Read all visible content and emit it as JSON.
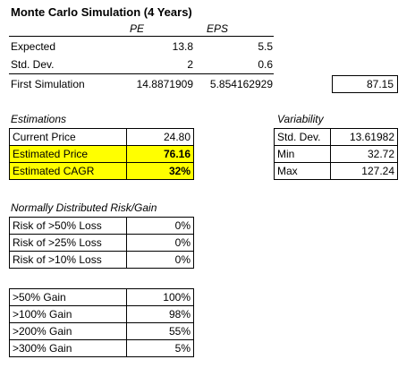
{
  "title": "Monte Carlo Simulation (4 Years)",
  "headers": {
    "pe": "PE",
    "eps": "EPS"
  },
  "rows": [
    {
      "label": "Expected",
      "pe": "13.8",
      "eps": "5.5"
    },
    {
      "label": "Std. Dev.",
      "pe": "2",
      "eps": "0.6"
    },
    {
      "label": "First Simulation",
      "pe": "14.8871909",
      "eps": "5.854162929"
    }
  ],
  "first_sim_result": "87.15",
  "estimations": {
    "header": "Estimations",
    "rows": [
      {
        "label": "Current Price",
        "value": "24.80"
      },
      {
        "label": "Estimated Price",
        "value": "76.16"
      },
      {
        "label": "Estimated CAGR",
        "value": "32%"
      }
    ]
  },
  "variability": {
    "header": "Variability",
    "rows": [
      {
        "label": "Std. Dev.",
        "value": "13.61982"
      },
      {
        "label": "Min",
        "value": "32.72"
      },
      {
        "label": "Max",
        "value": "127.24"
      }
    ]
  },
  "risk": {
    "header": "Normally Distributed Risk/Gain",
    "rows": [
      {
        "label": "Risk of >50% Loss",
        "value": "0%"
      },
      {
        "label": "Risk of >25% Loss",
        "value": "0%"
      },
      {
        "label": "Risk of >10% Loss",
        "value": "0%"
      }
    ]
  },
  "gain": {
    "rows": [
      {
        "label": ">50% Gain",
        "value": "100%"
      },
      {
        "label": ">100% Gain",
        "value": "98%"
      },
      {
        "label": ">200% Gain",
        "value": "55%"
      },
      {
        "label": ">300% Gain",
        "value": "5%"
      }
    ]
  },
  "colors": {
    "highlight": "#ffff00",
    "border": "#000000"
  }
}
